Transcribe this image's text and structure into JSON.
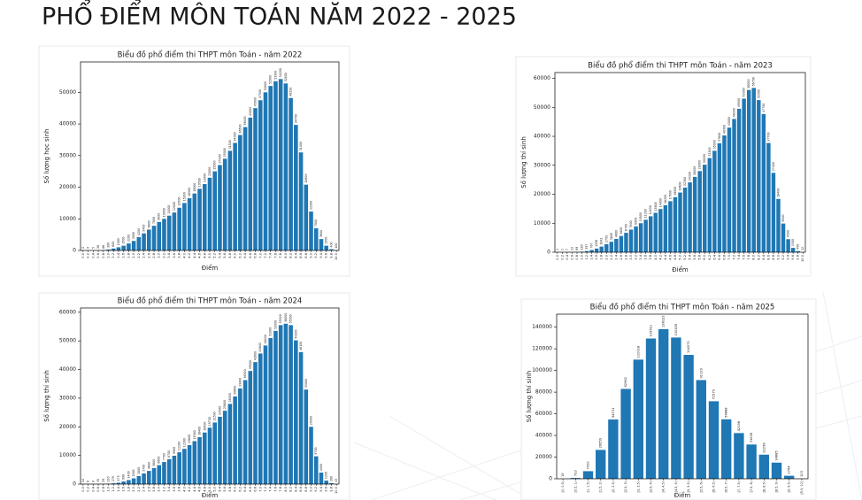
{
  "title": "PHỔ ĐIỂM MÔN TOÁN NĂM 2022 - 2025",
  "chart_data": [
    {
      "type": "bar",
      "title": "Biểu đồ phổ điểm thi THPT môn Toán - năm 2022",
      "x_label": "Điểm",
      "y_label": "Số lượng học sinh",
      "color": "#1f77b4",
      "categories": [
        "0.0",
        "0.2",
        "0.4",
        "0.6",
        "0.8",
        "1.0",
        "1.2",
        "1.4",
        "1.6",
        "1.8",
        "2.0",
        "2.2",
        "2.4",
        "2.6",
        "2.8",
        "3.0",
        "3.2",
        "3.4",
        "3.6",
        "3.8",
        "4.0",
        "4.2",
        "4.4",
        "4.6",
        "4.8",
        "5.0",
        "5.2",
        "5.4",
        "5.6",
        "5.8",
        "6.0",
        "6.2",
        "6.4",
        "6.6",
        "6.8",
        "7.0",
        "7.2",
        "7.4",
        "7.6",
        "7.8",
        "8.0",
        "8.2",
        "8.4",
        "8.6",
        "8.8",
        "9.0",
        "9.2",
        "9.4",
        "9.6",
        "9.8",
        "10.0"
      ],
      "values": [
        4,
        4,
        5,
        26,
        66,
        300,
        600,
        1000,
        1500,
        2200,
        3000,
        4200,
        5400,
        6600,
        7800,
        9000,
        10000,
        11000,
        12000,
        13500,
        15000,
        16500,
        18000,
        19500,
        21000,
        23000,
        25000,
        27000,
        29000,
        31500,
        34000,
        36500,
        39000,
        42000,
        45000,
        47500,
        50000,
        52000,
        53500,
        54200,
        52800,
        48200,
        39700,
        31000,
        20800,
        12300,
        7000,
        3600,
        1500,
        400,
        100
      ],
      "ylim": [
        0,
        59600
      ],
      "yticks": [
        0,
        10000,
        20000,
        30000,
        40000,
        50000
      ]
    },
    {
      "type": "bar",
      "title": "Biểu đồ phổ điểm thi THPT môn Toán - năm 2023",
      "x_label": "Điểm",
      "y_label": "Số lượng thí sinh",
      "color": "#1f77b4",
      "categories": [
        "0.0",
        "0.2",
        "0.4",
        "0.6",
        "0.8",
        "1.0",
        "1.2",
        "1.4",
        "1.6",
        "1.8",
        "2.0",
        "2.2",
        "2.4",
        "2.6",
        "2.8",
        "3.0",
        "3.2",
        "3.4",
        "3.6",
        "3.8",
        "4.0",
        "4.2",
        "4.4",
        "4.6",
        "4.8",
        "5.0",
        "5.2",
        "5.4",
        "5.6",
        "5.8",
        "6.0",
        "6.2",
        "6.4",
        "6.6",
        "6.8",
        "7.0",
        "7.2",
        "7.4",
        "7.6",
        "7.8",
        "8.0",
        "8.2",
        "8.4",
        "8.6",
        "8.8",
        "9.0",
        "9.2",
        "9.4",
        "9.6",
        "9.8",
        "10.0"
      ],
      "values": [
        1,
        1,
        7,
        22,
        69,
        180,
        397,
        767,
        1256,
        1942,
        2750,
        3600,
        4600,
        5600,
        6700,
        7800,
        8900,
        10000,
        11200,
        12400,
        13600,
        14900,
        16200,
        17600,
        19000,
        20600,
        22300,
        24100,
        26000,
        28000,
        30200,
        32500,
        35000,
        37600,
        40300,
        43000,
        46000,
        49500,
        53000,
        56000,
        56700,
        52500,
        47700,
        37700,
        27400,
        18400,
        9900,
        4500,
        1500,
        400,
        12
      ],
      "ylim": [
        0,
        62000
      ],
      "yticks": [
        0,
        10000,
        20000,
        30000,
        40000,
        50000,
        60000
      ]
    },
    {
      "type": "bar",
      "title": "Biểu đồ phổ điểm thi THPT môn Toán - năm 2024",
      "x_label": "Điểm",
      "y_label": "Số lượng thí sinh",
      "color": "#1f77b4",
      "categories": [
        "0.0",
        "0.2",
        "0.4",
        "0.6",
        "0.8",
        "1.0",
        "1.2",
        "1.4",
        "1.6",
        "1.8",
        "2.0",
        "2.2",
        "2.4",
        "2.6",
        "2.8",
        "3.0",
        "3.2",
        "3.4",
        "3.6",
        "3.8",
        "4.0",
        "4.2",
        "4.4",
        "4.6",
        "4.8",
        "5.0",
        "5.2",
        "5.4",
        "5.6",
        "5.8",
        "6.0",
        "6.2",
        "6.4",
        "6.6",
        "6.8",
        "7.0",
        "7.2",
        "7.4",
        "7.6",
        "7.8",
        "8.0",
        "8.2",
        "8.4",
        "8.6",
        "8.8",
        "9.0",
        "9.2",
        "9.4",
        "9.6",
        "9.8",
        "10.0"
      ],
      "values": [
        14,
        6,
        9,
        35,
        59,
        120,
        278,
        475,
        908,
        1400,
        2000,
        2800,
        3700,
        4600,
        5600,
        6600,
        7700,
        8700,
        9900,
        11100,
        12300,
        13600,
        15000,
        16400,
        18000,
        19700,
        21500,
        23500,
        25600,
        28000,
        30600,
        33400,
        36300,
        39500,
        42600,
        45600,
        48400,
        51000,
        53500,
        55500,
        56000,
        55500,
        50200,
        46100,
        33000,
        20000,
        9700,
        4000,
        1200,
        300,
        43
      ],
      "ylim": [
        0,
        61500
      ],
      "yticks": [
        0,
        10000,
        20000,
        30000,
        40000,
        50000,
        60000
      ]
    },
    {
      "type": "bar",
      "title": "Biểu đồ phổ điểm thi THPT môn Toán - năm 2025",
      "x_label": "Điểm",
      "y_label": "Số lượng thí sinh",
      "color": "#1f77b4",
      "categories": [
        "[0, 0.5)",
        "[0.5, 1)",
        "[1, 1.5)",
        "[1.5, 2)",
        "[2, 2.5)",
        "[2.5, 3)",
        "[3, 3.5)",
        "[3.5, 4)",
        "[4, 4.5)",
        "[4.5, 5)",
        "[5, 5.5)",
        "[5.5, 6)",
        "[6, 6.5)",
        "[6.5, 7)",
        "[7, 7.5)",
        "[7.5, 8)",
        "[8, 8.5)",
        "[8.5, 9)",
        "[9, 9.5)",
        "[9.5, 10]"
      ],
      "values": [
        19,
        733,
        7000,
        26659,
        54731,
        82962,
        110018,
        129511,
        138122,
        130439,
        114373,
        91129,
        71579,
        54888,
        42198,
        31636,
        22258,
        14885,
        2764,
        103
      ],
      "ylim": [
        0,
        152000
      ],
      "yticks": [
        0,
        20000,
        40000,
        60000,
        80000,
        100000,
        120000,
        140000
      ]
    }
  ]
}
